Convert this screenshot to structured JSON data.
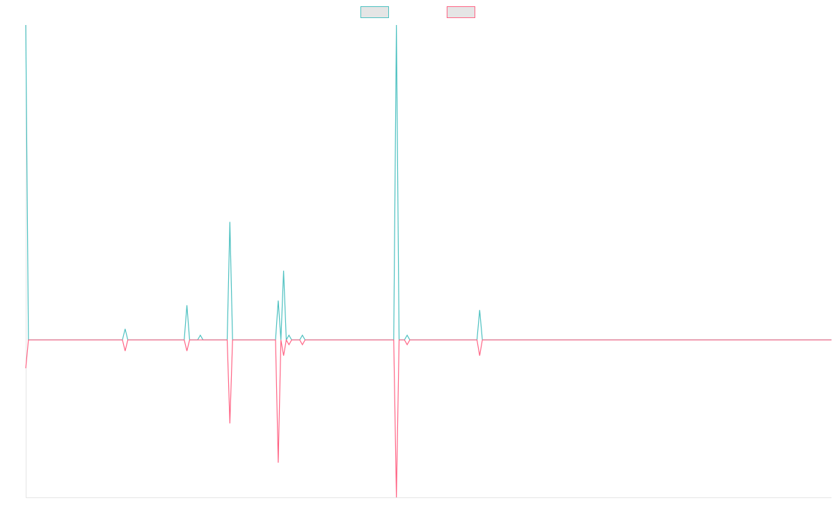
{
  "chart_data": {
    "type": "line",
    "x": [
      0,
      1,
      36,
      37,
      38,
      59,
      60,
      61,
      64,
      65,
      66,
      75,
      76,
      77,
      93,
      94,
      95,
      96,
      97,
      98,
      99,
      102,
      103,
      104,
      137,
      138,
      139,
      141,
      142,
      143,
      168,
      169,
      170,
      300
    ],
    "series": [
      {
        "color": "#4bc0c0",
        "values": [
          2,
          0,
          0,
          0.07,
          0,
          0,
          0.22,
          0,
          0,
          0.03,
          0,
          0,
          0.75,
          0,
          0,
          0.25,
          0,
          0.44,
          0,
          0.03,
          0,
          0,
          0.03,
          0,
          0,
          2,
          0,
          0,
          0.03,
          0,
          0,
          0.19,
          0,
          0
        ]
      },
      {
        "color": "#ff6384",
        "values": [
          -0.18,
          0,
          0,
          -0.07,
          0,
          0,
          -0.07,
          0,
          0,
          0,
          0,
          0,
          -0.53,
          0,
          0,
          -0.78,
          0,
          -0.1,
          0,
          -0.03,
          0,
          0,
          -0.03,
          0,
          0,
          -1,
          0,
          0,
          -0.03,
          0,
          0,
          -0.1,
          0,
          0
        ]
      }
    ],
    "xlim": [
      0,
      300
    ],
    "ylim": [
      -1,
      2
    ],
    "grid": false,
    "legend": "top"
  }
}
